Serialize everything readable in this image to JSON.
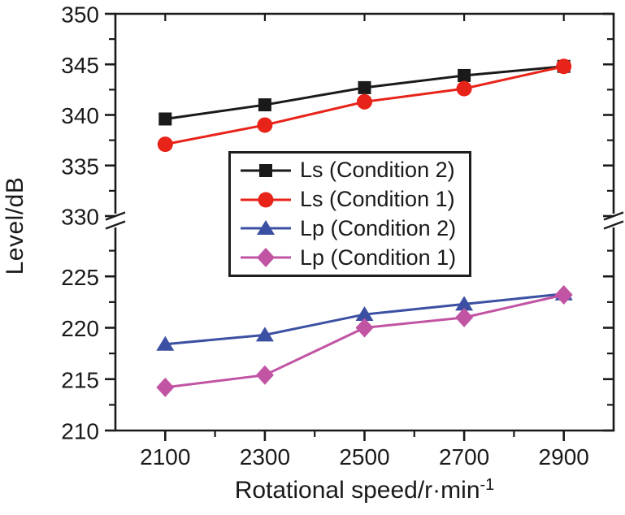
{
  "chart_data": {
    "type": "line",
    "title": "",
    "xlabel": "Rotational speed/r·min",
    "xlabel_superscript": "-1",
    "ylabel": "Level/dB",
    "x": [
      2100,
      2300,
      2500,
      2700,
      2900
    ],
    "xlim": [
      2000,
      3000
    ],
    "x_major_ticks": [
      2100,
      2300,
      2500,
      2700,
      2900
    ],
    "x_minor_ticks": [
      2200,
      2400,
      2600,
      2800
    ],
    "grid": false,
    "legend_position": "upper-center-inside",
    "axis_break": {
      "upper_range": [
        330,
        350
      ],
      "lower_range": [
        210,
        230
      ],
      "upper_major_ticks": [
        330,
        335,
        340,
        345,
        350
      ],
      "upper_minor_ticks": [
        332.5,
        337.5,
        342.5,
        347.5
      ],
      "lower_major_ticks": [
        210,
        215,
        220,
        225
      ],
      "lower_minor_ticks": [
        212.5,
        217.5,
        222.5,
        227.5
      ]
    },
    "series": [
      {
        "name": "Ls (Condition 2)",
        "marker": "square",
        "color": "#1a1a1a",
        "values": [
          339.6,
          341.0,
          342.7,
          343.9,
          344.8
        ]
      },
      {
        "name": "Ls (Condition 1)",
        "marker": "circle",
        "color": "#e82319",
        "values": [
          337.1,
          339.0,
          341.3,
          342.6,
          344.8
        ]
      },
      {
        "name": "Lp (Condition 2)",
        "marker": "triangle",
        "color": "#3b50a2",
        "values": [
          218.4,
          219.3,
          221.3,
          222.3,
          223.3
        ]
      },
      {
        "name": "Lp (Condition 1)",
        "marker": "diamond",
        "color": "#c254a4",
        "values": [
          214.2,
          215.4,
          220.0,
          221.0,
          223.2
        ]
      }
    ],
    "colors": {
      "axis": "#1a1a1a",
      "text": "#1a1a1a",
      "background": "#ffffff"
    }
  }
}
